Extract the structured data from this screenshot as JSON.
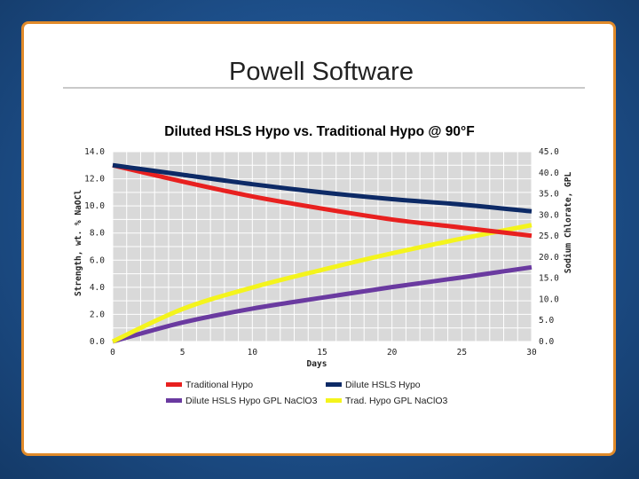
{
  "slide": {
    "title": "Powell Software"
  },
  "colors": {
    "frame": "#1d4f8a",
    "border": "#e08a2a",
    "plot_bg": "#d9d9d9",
    "grid": "#ffffff"
  },
  "chart_data": {
    "type": "line",
    "title": "Diluted HSLS Hypo vs. Traditional Hypo @ 90°F",
    "xlabel": "Days",
    "ylabel_left": "Strength, wt. % NaOCl",
    "ylabel_right": "Sodium Chlorate, GPL",
    "xlim": [
      0,
      30
    ],
    "ylim_left": [
      0,
      14
    ],
    "ylim_right": [
      0,
      45
    ],
    "x_ticks": [
      0,
      5,
      10,
      15,
      20,
      25,
      30
    ],
    "y_left_ticks": [
      "0.0",
      "2.0",
      "4.0",
      "6.0",
      "8.0",
      "10.0",
      "12.0",
      "14.0"
    ],
    "y_right_ticks": [
      "0.0",
      "5.0",
      "10.0",
      "15.0",
      "20.0",
      "25.0",
      "30.0",
      "35.0",
      "40.0",
      "45.0"
    ],
    "grid": true,
    "legend_position": "bottom",
    "series": [
      {
        "name": "Traditional Hypo",
        "axis": "left",
        "color": "#e8201f",
        "x": [
          0,
          5,
          10,
          15,
          20,
          25,
          30
        ],
        "y": [
          13.0,
          11.8,
          10.7,
          9.8,
          9.0,
          8.4,
          7.8
        ]
      },
      {
        "name": "Dilute HSLS Hypo",
        "axis": "left",
        "color": "#0d2a66",
        "x": [
          0,
          5,
          10,
          15,
          20,
          25,
          30
        ],
        "y": [
          13.0,
          12.3,
          11.6,
          11.0,
          10.5,
          10.1,
          9.6
        ]
      },
      {
        "name": "Dilute HSLS Hypo GPL NaClO3",
        "axis": "right",
        "color": "#6a3aa0",
        "x": [
          0,
          5,
          10,
          15,
          20,
          25,
          30
        ],
        "y": [
          0.0,
          4.5,
          7.8,
          10.4,
          12.9,
          15.2,
          17.6
        ]
      },
      {
        "name": "Trad. Hypo GPL NaClO3",
        "axis": "right",
        "color": "#f4f41c",
        "x": [
          0,
          5,
          10,
          15,
          20,
          25,
          30
        ],
        "y": [
          0.0,
          7.7,
          12.8,
          17.0,
          20.9,
          24.4,
          27.6
        ]
      }
    ]
  }
}
